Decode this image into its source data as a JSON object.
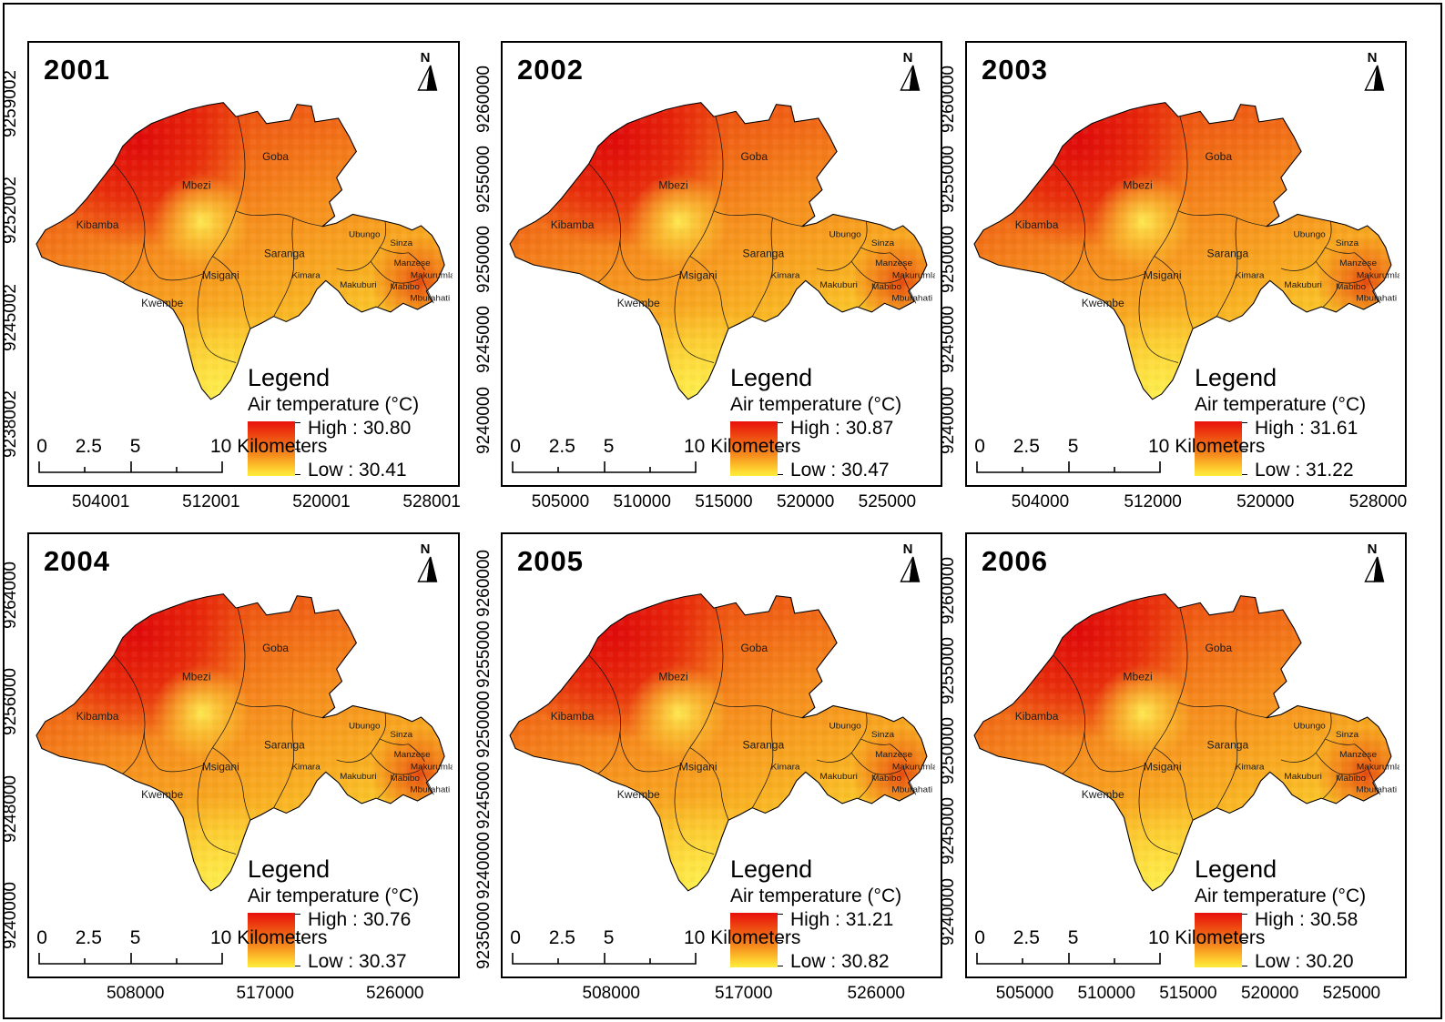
{
  "shared": {
    "north_label": "N",
    "legend": {
      "title": "Legend",
      "subtitle": "Air temperature (°C)"
    },
    "scalebar": {
      "labels": [
        "0",
        "2.5",
        "5"
      ],
      "end_label": "10 Kilometers"
    },
    "districts": [
      "Goba",
      "Mbezi",
      "Kibamba",
      "Kwembe",
      "Msigani",
      "Saranga",
      "Kimara",
      "Ubungo",
      "Sinza",
      "Manzese",
      "Makurumla",
      "Makuburi",
      "Mabibo",
      "Mburahati"
    ],
    "colors": {
      "high_red": "#e31309",
      "mid_orange": "#f68d1e",
      "low_yellow": "#ffee3d"
    }
  },
  "chart_data": {
    "type": "heatmap",
    "variable": "Air temperature (°C)",
    "panels": [
      {
        "year": "2001",
        "high": 30.8,
        "low": 30.41,
        "high_label": "High : 30.80",
        "low_label": "Low : 30.41",
        "x_ticks": [
          "504001",
          "512001",
          "520001",
          "528001"
        ],
        "y_ticks": [
          "9259002",
          "9252002",
          "9245002",
          "9238002"
        ]
      },
      {
        "year": "2002",
        "high": 30.87,
        "low": 30.47,
        "high_label": "High : 30.87",
        "low_label": "Low : 30.47",
        "x_ticks": [
          "505000",
          "510000",
          "515000",
          "520000",
          "525000"
        ],
        "y_ticks": [
          "9260000",
          "9255000",
          "9250000",
          "9245000",
          "9240000"
        ]
      },
      {
        "year": "2003",
        "high": 31.61,
        "low": 31.22,
        "high_label": "High : 31.61",
        "low_label": "Low : 31.22",
        "x_ticks": [
          "504000",
          "512000",
          "520000",
          "528000"
        ],
        "y_ticks": [
          "9260000",
          "9255000",
          "9250000",
          "9245000",
          "9240000"
        ]
      },
      {
        "year": "2004",
        "high": 30.76,
        "low": 30.37,
        "high_label": "High : 30.76",
        "low_label": "Low : 30.37",
        "x_ticks": [
          "508000",
          "517000",
          "526000"
        ],
        "y_ticks": [
          "9264000",
          "9256000",
          "9248000",
          "9240000"
        ]
      },
      {
        "year": "2005",
        "high": 31.21,
        "low": 30.82,
        "high_label": "High : 31.21",
        "low_label": "Low : 30.82",
        "x_ticks": [
          "508000",
          "517000",
          "526000"
        ],
        "y_ticks": [
          "9260000",
          "9255000",
          "9250000",
          "9245000",
          "9240000",
          "9235000"
        ]
      },
      {
        "year": "2006",
        "high": 30.58,
        "low": 30.2,
        "high_label": "High : 30.58",
        "low_label": "Low : 30.20",
        "x_ticks": [
          "505000",
          "510000",
          "515000",
          "520000",
          "525000"
        ],
        "y_ticks": [
          "9260000",
          "9255000",
          "9250000",
          "9245000",
          "9240000"
        ]
      }
    ]
  }
}
